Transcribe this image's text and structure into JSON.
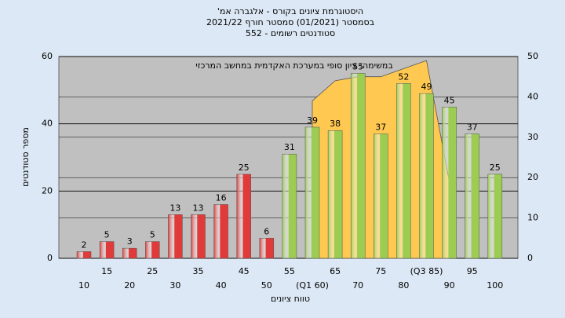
{
  "chart_data": {
    "type": "bar",
    "title": "היסטוגרמת ציונים בקורס - אלגברה אמ'",
    "subtitle": [
      "בסמסטר (01/2021) סמסטר חורף 2021/22",
      "סטודנטים רשומים - 552"
    ],
    "annotation": "במשימה: ציון סופי במערכת האקדמית במחשב המרכזי",
    "x_label": "טווח ציונים",
    "y_label": "מספר סטודנטים",
    "categories": [
      "10",
      "15",
      "20",
      "25",
      "30",
      "35",
      "40",
      "45",
      "50",
      "55",
      "(Q1 60)",
      "65",
      "70",
      "75",
      "80",
      "(Q3 85)",
      "90",
      "95",
      "100"
    ],
    "values": [
      2,
      5,
      3,
      5,
      13,
      13,
      16,
      25,
      6,
      31,
      39,
      38,
      55,
      37,
      52,
      49,
      45,
      37,
      25
    ],
    "colors": [
      "#e03a3a",
      "#e03a3a",
      "#e03a3a",
      "#e03a3a",
      "#e03a3a",
      "#e03a3a",
      "#e03a3a",
      "#e03a3a",
      "#e03a3a",
      "#9ccc52",
      "#9ccc52",
      "#9ccc52",
      "#9ccc52",
      "#9ccc52",
      "#9ccc52",
      "#9ccc52",
      "#9ccc52",
      "#9ccc52",
      "#9ccc52"
    ],
    "area": {
      "color": "#ffc850",
      "axis": "y2",
      "values": [
        null,
        null,
        null,
        null,
        null,
        null,
        null,
        null,
        null,
        null,
        39,
        44,
        45,
        45,
        47,
        49,
        19,
        null,
        null
      ]
    },
    "ylim": [
      0,
      60
    ],
    "yticks": [
      0,
      20,
      40,
      60
    ],
    "y2lim": [
      0,
      50
    ],
    "y2ticks": [
      0,
      10,
      20,
      30,
      40,
      50
    ],
    "grid": true
  }
}
